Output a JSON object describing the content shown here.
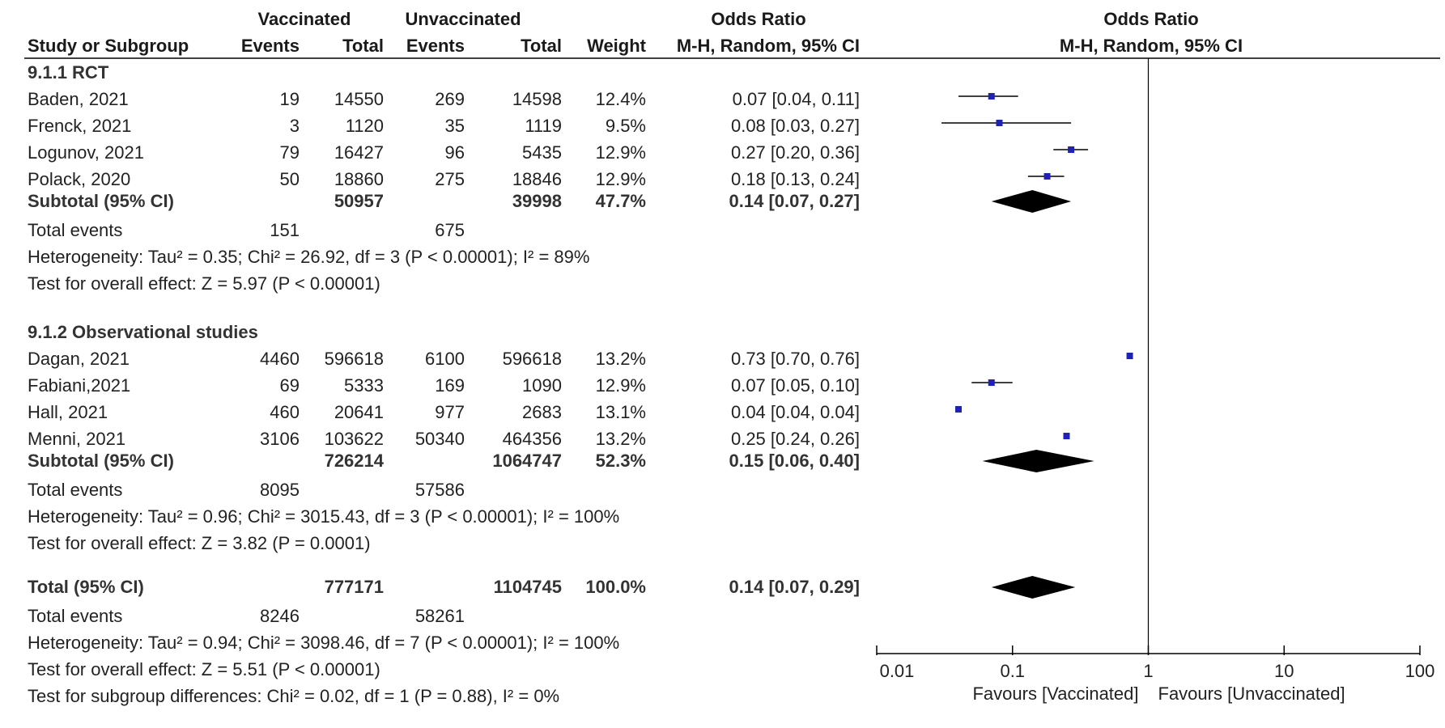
{
  "chart_data": {
    "type": "forest",
    "headers": {
      "vaccinated": "Vaccinated",
      "unvaccinated": "Unvaccinated",
      "odds_ratio": "Odds Ratio",
      "study": "Study or Subgroup",
      "events": "Events",
      "total": "Total",
      "weight": "Weight",
      "method": "M-H, Random, 95% CI",
      "plot_title": "Odds Ratio",
      "plot_method": "M-H, Random, 95% CI"
    },
    "subgroups": [
      {
        "title": "9.1.1 RCT",
        "studies": [
          {
            "name": "Baden, 2021",
            "ve": "19",
            "vt": "14550",
            "ue": "269",
            "ut": "14598",
            "w": "12.4%",
            "ci": "0.07 [0.04, 0.11]",
            "or": 0.07,
            "lo": 0.04,
            "hi": 0.11
          },
          {
            "name": "Frenck, 2021",
            "ve": "3",
            "vt": "1120",
            "ue": "35",
            "ut": "1119",
            "w": "9.5%",
            "ci": "0.08 [0.03, 0.27]",
            "or": 0.08,
            "lo": 0.03,
            "hi": 0.27
          },
          {
            "name": "Logunov, 2021",
            "ve": "79",
            "vt": "16427",
            "ue": "96",
            "ut": "5435",
            "w": "12.9%",
            "ci": "0.27 [0.20, 0.36]",
            "or": 0.27,
            "lo": 0.2,
            "hi": 0.36
          },
          {
            "name": "Polack, 2020",
            "ve": "50",
            "vt": "18860",
            "ue": "275",
            "ut": "18846",
            "w": "12.9%",
            "ci": "0.18 [0.13, 0.24]",
            "or": 0.18,
            "lo": 0.13,
            "hi": 0.24
          }
        ],
        "subtotal": {
          "label": "Subtotal (95% CI)",
          "vt": "50957",
          "ut": "39998",
          "w": "47.7%",
          "ci": "0.14 [0.07, 0.27]",
          "or": 0.14,
          "lo": 0.07,
          "hi": 0.27
        },
        "total_events": {
          "label": "Total events",
          "ve": "151",
          "ue": "675"
        },
        "heterogeneity": "Heterogeneity: Tau² = 0.35; Chi² = 26.92, df = 3 (P < 0.00001); I² = 89%",
        "overall": "Test for overall effect: Z = 5.97 (P < 0.00001)"
      },
      {
        "title": "9.1.2 Observational studies",
        "studies": [
          {
            "name": "Dagan, 2021",
            "ve": "4460",
            "vt": "596618",
            "ue": "6100",
            "ut": "596618",
            "w": "13.2%",
            "ci": "0.73 [0.70, 0.76]",
            "or": 0.73,
            "lo": 0.7,
            "hi": 0.76
          },
          {
            "name": "Fabiani,2021",
            "ve": "69",
            "vt": "5333",
            "ue": "169",
            "ut": "1090",
            "w": "12.9%",
            "ci": "0.07 [0.05, 0.10]",
            "or": 0.07,
            "lo": 0.05,
            "hi": 0.1
          },
          {
            "name": "Hall, 2021",
            "ve": "460",
            "vt": "20641",
            "ue": "977",
            "ut": "2683",
            "w": "13.1%",
            "ci": "0.04 [0.04, 0.04]",
            "or": 0.04,
            "lo": 0.04,
            "hi": 0.04
          },
          {
            "name": "Menni, 2021",
            "ve": "3106",
            "vt": "103622",
            "ue": "50340",
            "ut": "464356",
            "w": "13.2%",
            "ci": "0.25 [0.24, 0.26]",
            "or": 0.25,
            "lo": 0.24,
            "hi": 0.26
          }
        ],
        "subtotal": {
          "label": "Subtotal (95% CI)",
          "vt": "726214",
          "ut": "1064747",
          "w": "52.3%",
          "ci": "0.15 [0.06, 0.40]",
          "or": 0.15,
          "lo": 0.06,
          "hi": 0.4
        },
        "total_events": {
          "label": "Total events",
          "ve": "8095",
          "ue": "57586"
        },
        "heterogeneity": "Heterogeneity: Tau² = 0.96; Chi² = 3015.43, df = 3 (P < 0.00001); I² = 100%",
        "overall": "Test for overall effect: Z = 3.82 (P = 0.0001)"
      }
    ],
    "total": {
      "label": "Total (95% CI)",
      "vt": "777171",
      "ut": "1104745",
      "w": "100.0%",
      "ci": "0.14 [0.07, 0.29]",
      "or": 0.14,
      "lo": 0.07,
      "hi": 0.29
    },
    "total_events": {
      "label": "Total events",
      "ve": "8246",
      "ue": "58261"
    },
    "heterogeneity": "Heterogeneity: Tau² = 0.94; Chi² = 3098.46, df = 7 (P < 0.00001); I² = 100%",
    "overall": "Test for overall effect: Z = 5.51 (P < 0.00001)",
    "subgroup_test": "Test for subgroup differences: Chi² = 0.02, df = 1 (P = 0.88), I² = 0%",
    "x_axis": {
      "scale": "log",
      "range": [
        0.01,
        100
      ],
      "ticks": [
        0.01,
        0.1,
        1,
        10,
        100
      ],
      "tick_labels": [
        "0.01",
        "0.1",
        "1",
        "10",
        "100"
      ],
      "left_label": "Favours [Vaccinated]",
      "right_label": "Favours [Unvaccinated]"
    },
    "colors": {
      "marker": "#1f22b8",
      "diamond": "#000000",
      "line": "#000000"
    }
  }
}
